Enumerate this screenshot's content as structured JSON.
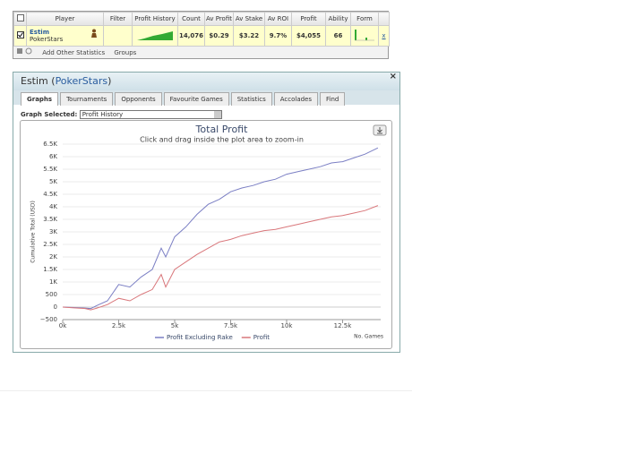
{
  "table": {
    "columns": [
      "Player",
      "Filter",
      "Profit History",
      "Count",
      "Av Profit",
      "Av Stake",
      "Av ROI",
      "Profit",
      "Ability",
      "Form"
    ],
    "row": {
      "player": "Estim",
      "site": "PokerStars",
      "count": "14,076",
      "av_profit": "$0.29",
      "av_stake": "$3.22",
      "av_roi": "9.7%",
      "profit": "$4,055",
      "ability": "66",
      "remove": "x"
    },
    "toolbar": {
      "add": "Add Other Statistics",
      "groups": "Groups"
    }
  },
  "panel": {
    "title_prefix": "Estim (",
    "title_link": "PokerStars",
    "title_suffix": ")",
    "close": "×",
    "tabs": [
      "Graphs",
      "Tournaments",
      "Opponents",
      "Favourite Games",
      "Statistics",
      "Accolades",
      "Find"
    ],
    "graph_label": "Graph Selected:",
    "graph_selected": "Profit History"
  },
  "chart_data": {
    "type": "line",
    "title": "Total Profit",
    "subtitle": "Click and drag inside the plot area to zoom-in",
    "x_label": "No. Games",
    "y_label": "Cumulative Total (USD)",
    "x": [
      0,
      500,
      1000,
      1250,
      1500,
      2000,
      2500,
      3000,
      3500,
      4000,
      4400,
      4600,
      5000,
      5500,
      6000,
      6500,
      7000,
      7500,
      8000,
      8500,
      9000,
      9500,
      10000,
      10500,
      11000,
      11500,
      12000,
      12500,
      13000,
      13500,
      14076
    ],
    "series": [
      {
        "name": "Profit Excluding Rake",
        "color": "#7b7fc4",
        "values": [
          0,
          -20,
          -40,
          -60,
          50,
          250,
          900,
          800,
          1200,
          1500,
          2350,
          2000,
          2800,
          3200,
          3700,
          4100,
          4300,
          4600,
          4750,
          4850,
          5000,
          5100,
          5300,
          5400,
          5500,
          5600,
          5750,
          5800,
          5950,
          6100,
          6350
        ]
      },
      {
        "name": "Profit",
        "color": "#d9777b",
        "values": [
          0,
          -30,
          -60,
          -110,
          -50,
          100,
          350,
          250,
          500,
          700,
          1300,
          800,
          1500,
          1800,
          2100,
          2350,
          2600,
          2700,
          2850,
          2950,
          3050,
          3100,
          3200,
          3300,
          3400,
          3500,
          3600,
          3650,
          3750,
          3850,
          4050
        ]
      }
    ],
    "xlim": [
      0,
      14200
    ],
    "ylim": [
      -500,
      6500
    ],
    "xticks": [
      {
        "value": 0,
        "label": "0k"
      },
      {
        "value": 2500,
        "label": "2.5k"
      },
      {
        "value": 5000,
        "label": "5k"
      },
      {
        "value": 7500,
        "label": "7.5k"
      },
      {
        "value": 10000,
        "label": "10k"
      },
      {
        "value": 12500,
        "label": "12.5k"
      }
    ],
    "yticks": [
      {
        "value": -500,
        "label": "−500"
      },
      0,
      500,
      {
        "value": 1000,
        "label": "1K"
      },
      {
        "value": 1500,
        "label": "1.5K"
      },
      {
        "value": 2000,
        "label": "2K"
      },
      {
        "value": 2500,
        "label": "2.5K"
      },
      {
        "value": 3000,
        "label": "3K"
      },
      {
        "value": 3500,
        "label": "3.5K"
      },
      {
        "value": 4000,
        "label": "4K"
      },
      {
        "value": 4500,
        "label": "4.5K"
      },
      {
        "value": 5000,
        "label": "5K"
      },
      {
        "value": 5500,
        "label": "5.5K"
      },
      {
        "value": 6000,
        "label": "6K"
      },
      {
        "value": 6500,
        "label": "6.5K"
      }
    ],
    "grid": true,
    "legend": "bottom"
  }
}
